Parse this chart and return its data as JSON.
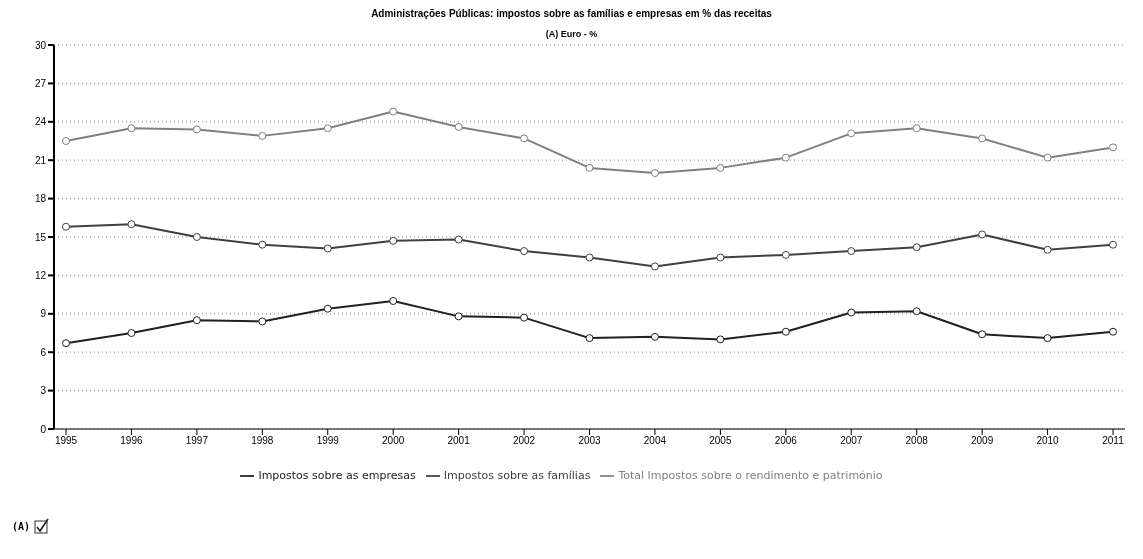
{
  "chart_data": {
    "type": "line",
    "title": "Administrações Públicas: impostos sobre as famílias e empresas em % das receitas",
    "subtitle": "(A) Euro - %",
    "categories": [
      "1995",
      "1996",
      "1997",
      "1998",
      "1999",
      "2000",
      "2001",
      "2002",
      "2003",
      "2004",
      "2005",
      "2006",
      "2007",
      "2008",
      "2009",
      "2010",
      "2011"
    ],
    "series": [
      {
        "name": "Total Impostos sobre o rendimento e património",
        "color": "#808080",
        "values": [
          22.5,
          23.5,
          23.4,
          22.9,
          23.5,
          24.8,
          23.6,
          22.7,
          20.4,
          20.0,
          20.4,
          21.2,
          23.1,
          23.5,
          22.7,
          21.2,
          22.0
        ]
      },
      {
        "name": "Impostos sobre as famílias",
        "color": "#404040",
        "values": [
          15.8,
          16.0,
          15.0,
          14.4,
          14.1,
          14.7,
          14.8,
          13.9,
          13.4,
          12.7,
          13.4,
          13.6,
          13.9,
          14.2,
          15.2,
          14.0,
          14.4
        ]
      },
      {
        "name": "Impostos sobre as empresas",
        "color": "#202020",
        "values": [
          6.7,
          7.5,
          8.5,
          8.4,
          9.4,
          10.0,
          8.8,
          8.7,
          7.1,
          7.2,
          7.0,
          7.6,
          9.1,
          9.2,
          7.4,
          7.1,
          7.6
        ]
      }
    ],
    "ylim": [
      0,
      30
    ],
    "yticks": [
      0,
      3,
      6,
      9,
      12,
      15,
      18,
      21,
      24,
      27,
      30
    ],
    "grid": "y",
    "legend": "bottom",
    "marker": "circle",
    "line_style": "solid",
    "annotations": [
      "(A)"
    ]
  }
}
